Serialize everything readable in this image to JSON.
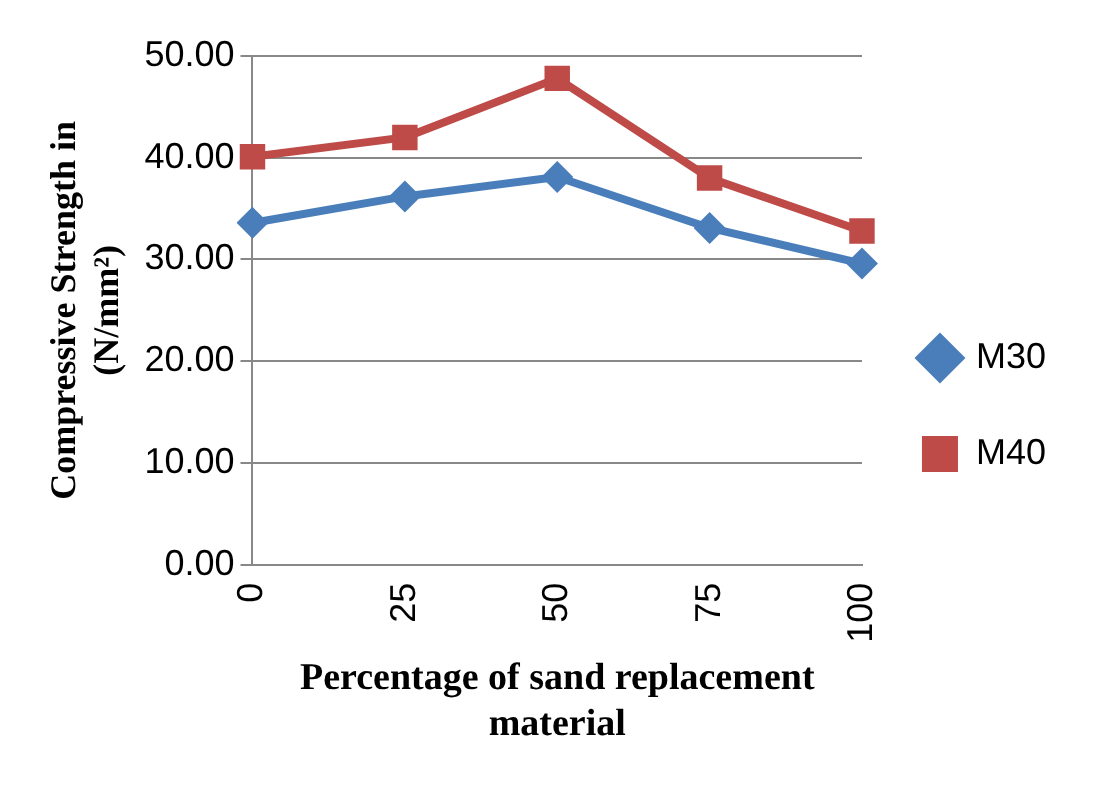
{
  "chart_data": {
    "type": "line",
    "categories": [
      "0",
      "25",
      "50",
      "75",
      "100"
    ],
    "xlabel": "Percentage of sand replacement material",
    "ylabel": "Compressive Strength in (N/mm²)",
    "ylim": [
      0,
      50
    ],
    "yticks": [
      {
        "value": 0,
        "label": "0.00"
      },
      {
        "value": 10,
        "label": "10.00"
      },
      {
        "value": 20,
        "label": "20.00"
      },
      {
        "value": 30,
        "label": "30.00"
      },
      {
        "value": 40,
        "label": "40.00"
      },
      {
        "value": 50,
        "label": "50.00"
      }
    ],
    "grid": "y",
    "legend": "right",
    "series": [
      {
        "name": "M30",
        "color": "#4a7ebb",
        "marker": "diamond",
        "values": [
          33.6,
          36.2,
          38.1,
          33.1,
          29.6
        ]
      },
      {
        "name": "M40",
        "color": "#be4b48",
        "marker": "square",
        "values": [
          40.1,
          42.0,
          47.8,
          38.0,
          32.8
        ]
      }
    ]
  }
}
